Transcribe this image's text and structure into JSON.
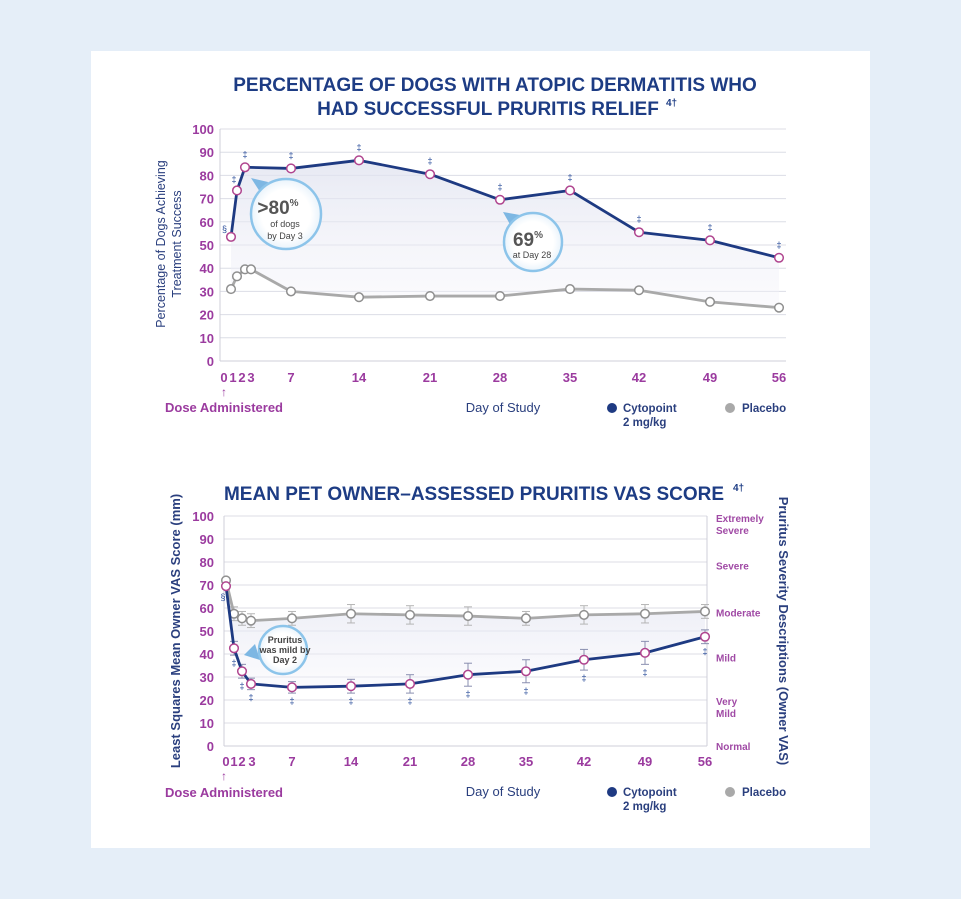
{
  "chart_data": [
    {
      "type": "line",
      "title_line1": "PERCENTAGE OF DOGS WITH ATOPIC DERMATITIS WHO",
      "title_line2": "HAD SUCCESSFUL PRURITIS RELIEF",
      "title_sup": "4†",
      "ylabel_line1": "Percentage of Dogs Achieving",
      "ylabel_line2": "Treatment Success",
      "xlabel": "Day of Study",
      "dose_label": "Dose Administered",
      "ylim": [
        0,
        100
      ],
      "yticks": [
        "0",
        "10",
        "20",
        "30",
        "40",
        "50",
        "60",
        "70",
        "80",
        "90",
        "100"
      ],
      "xticks": [
        "0",
        "1",
        "2",
        "3",
        "7",
        "14",
        "21",
        "28",
        "35",
        "42",
        "49",
        "56"
      ],
      "series": [
        {
          "name": "Cytopoint 2 mg/kg",
          "color": "#1e3a82",
          "x": [
            0,
            1,
            2,
            7,
            14,
            21,
            28,
            35,
            42,
            49,
            56
          ],
          "y": [
            53.5,
            73.5,
            83.5,
            83,
            86.5,
            80.5,
            69.5,
            73.5,
            55.5,
            52,
            44.5
          ],
          "markers": [
            "§",
            "‡",
            "‡",
            "‡",
            "‡",
            "‡",
            "‡",
            "‡",
            "‡",
            "‡",
            "‡"
          ]
        },
        {
          "name": "Placebo",
          "color": "#a9a9a9",
          "x": [
            0,
            1,
            2,
            3,
            7,
            14,
            21,
            28,
            35,
            42,
            49,
            56
          ],
          "y": [
            31,
            36.5,
            39.5,
            39.5,
            30,
            27.5,
            28,
            28,
            31,
            30.5,
            25.5,
            23
          ]
        }
      ],
      "callouts": [
        {
          "big": ">80",
          "unit": "%",
          "line1": "of dogs",
          "line2": "by Day 3"
        },
        {
          "big": "69",
          "unit": "%",
          "line1": "at Day 28"
        }
      ],
      "legend": [
        {
          "label_line1": "Cytopoint",
          "label_line2": "2 mg/kg",
          "color": "#1e3a82"
        },
        {
          "label_line1": "Placebo",
          "label_line2": "",
          "color": "#a9a9a9"
        }
      ]
    },
    {
      "type": "line",
      "title": "MEAN PET OWNER–ASSESSED PRURITIS VAS SCORE",
      "title_sup": "4†",
      "ylabel": "Least Squares Mean Owner VAS Score (mm)",
      "ylabel_right": "Pruritus Severity Descriptions (Owner VAS)",
      "xlabel": "Day of Study",
      "dose_label": "Dose Administered",
      "ylim": [
        0,
        100
      ],
      "yticks": [
        "0",
        "10",
        "20",
        "30",
        "40",
        "50",
        "60",
        "70",
        "80",
        "90",
        "100"
      ],
      "xticks": [
        "0",
        "1",
        "2",
        "3",
        "7",
        "14",
        "21",
        "28",
        "35",
        "42",
        "49",
        "56"
      ],
      "severity_labels": [
        {
          "line1": "Extremely",
          "line2": "Severe",
          "y": 97
        },
        {
          "line1": "Severe",
          "line2": "",
          "y": 78.5
        },
        {
          "line1": "Moderate",
          "line2": "",
          "y": 58
        },
        {
          "line1": "Mild",
          "line2": "",
          "y": 38.5
        },
        {
          "line1": "Very",
          "line2": "Mild",
          "y": 17.5
        },
        {
          "line1": "Normal",
          "line2": "",
          "y": 0
        }
      ],
      "series": [
        {
          "name": "Cytopoint 2 mg/kg",
          "color": "#1e3a82",
          "x": [
            0,
            1,
            2,
            3,
            7,
            14,
            21,
            28,
            35,
            42,
            49,
            56
          ],
          "y": [
            69.5,
            42.5,
            32.5,
            27,
            25.5,
            26,
            27,
            31,
            32.5,
            37.5,
            40.5,
            47.5
          ],
          "err": [
            0,
            3,
            3,
            2.5,
            2.5,
            3,
            4,
            5,
            5,
            4.5,
            5,
            3
          ],
          "markers": [
            "§",
            "‡",
            "‡",
            "‡",
            "‡",
            "‡",
            "‡",
            "‡",
            "‡",
            "‡",
            "‡",
            "‡"
          ]
        },
        {
          "name": "Placebo",
          "color": "#a9a9a9",
          "x": [
            0,
            1,
            2,
            3,
            7,
            14,
            21,
            28,
            35,
            42,
            49,
            56
          ],
          "y": [
            72,
            57.5,
            55.5,
            54.5,
            55.5,
            57.5,
            57,
            56.5,
            55.5,
            57,
            57.5,
            58.5
          ],
          "err": [
            0,
            3,
            3,
            3,
            3,
            4,
            4,
            4,
            3,
            4,
            4,
            3
          ]
        }
      ],
      "callouts": [
        {
          "line1": "Pruritus",
          "line2": "was mild by",
          "line3": "Day 2"
        }
      ],
      "legend": [
        {
          "label_line1": "Cytopoint",
          "label_line2": "2 mg/kg",
          "color": "#1e3a82"
        },
        {
          "label_line1": "Placebo",
          "label_line2": "",
          "color": "#a9a9a9"
        }
      ]
    }
  ]
}
